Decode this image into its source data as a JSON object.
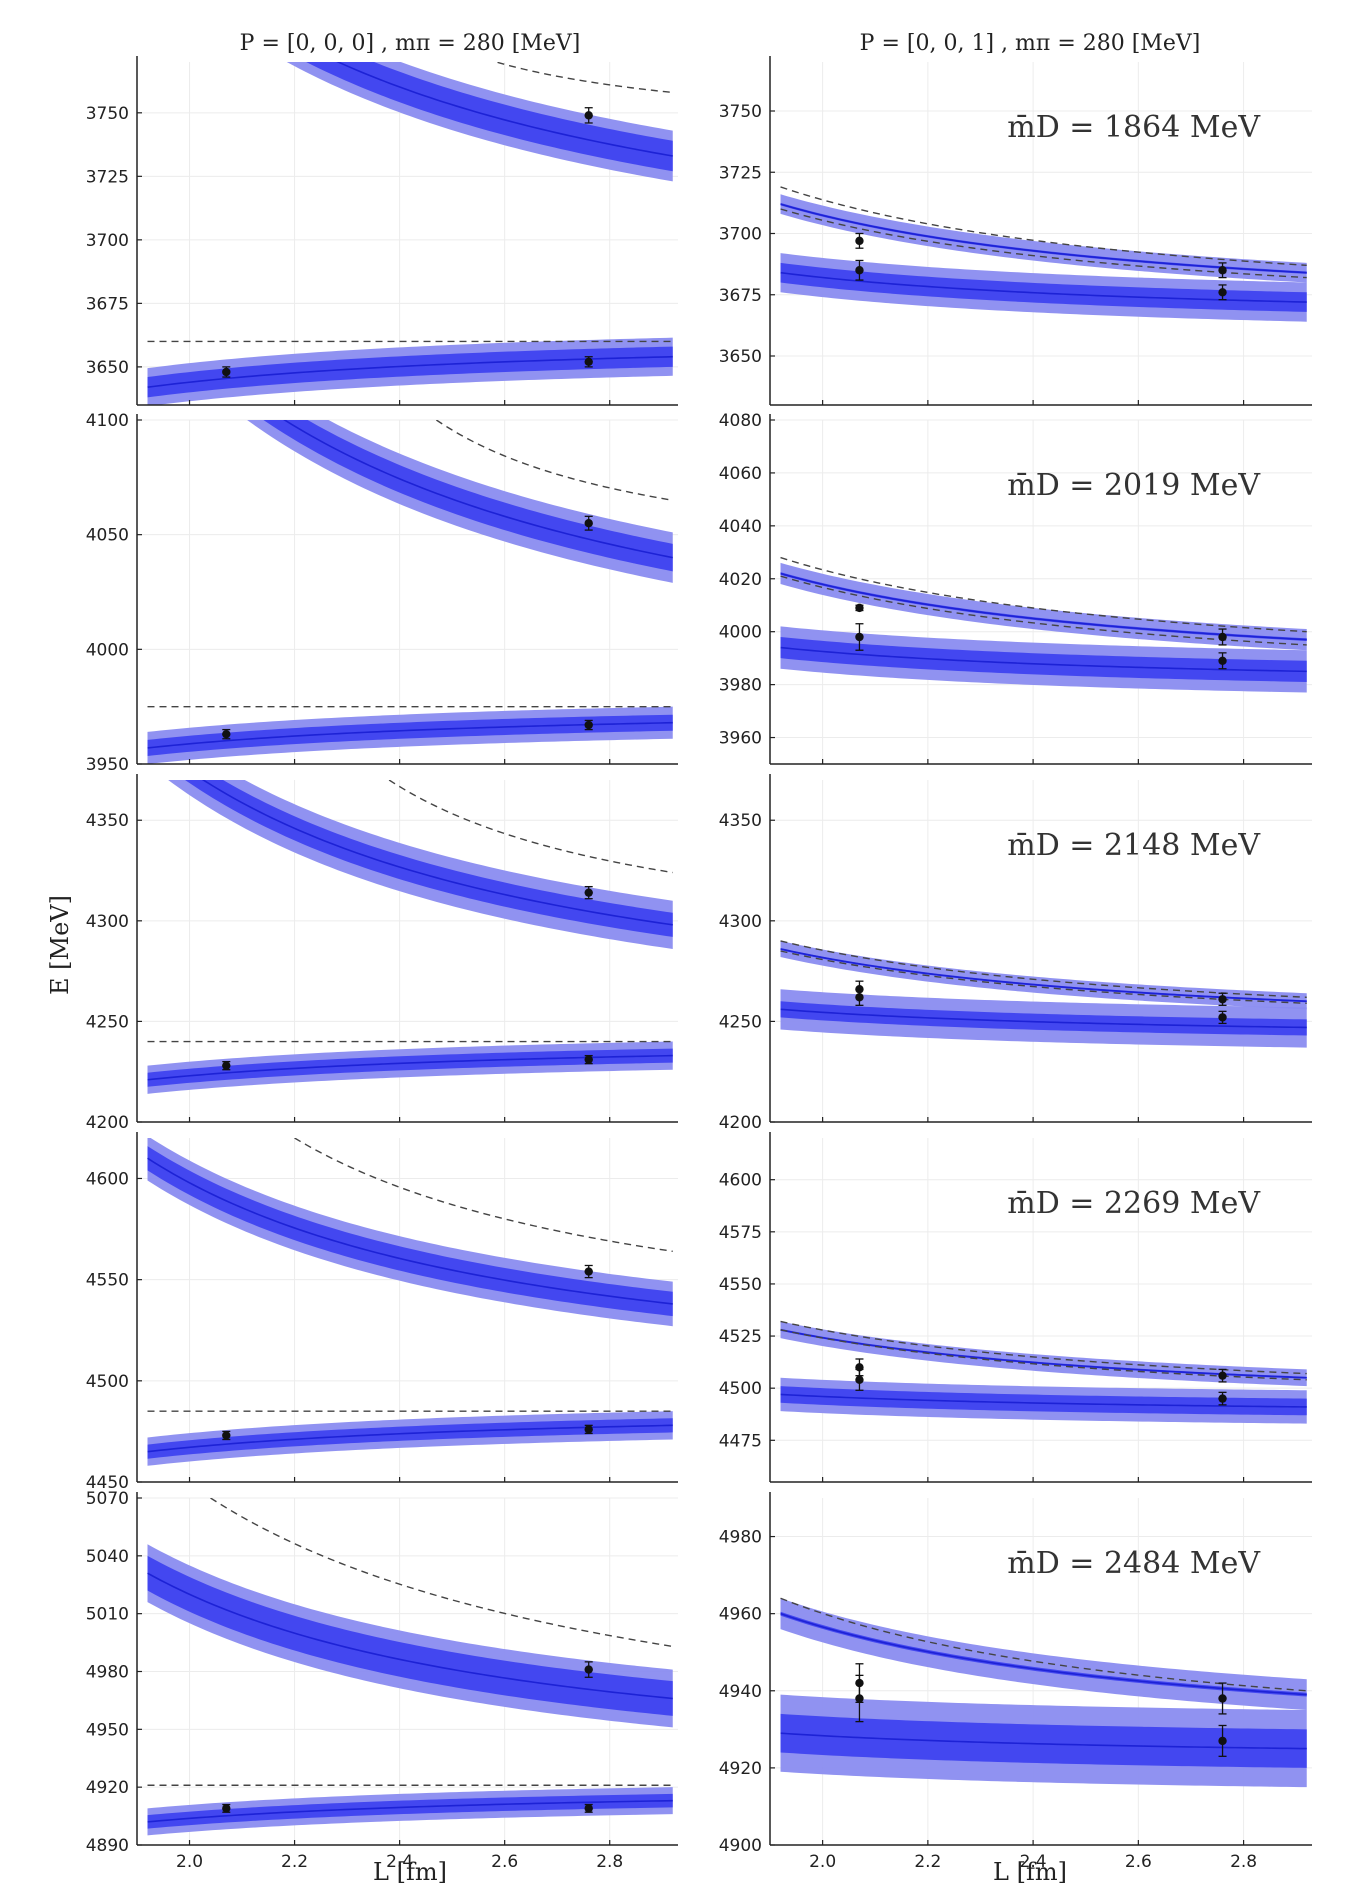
{
  "figure": {
    "col_titles": [
      "P = [0, 0, 0]  , mπ = 280 [MeV]",
      "P = [0, 0, 1]  , mπ = 280 [MeV]"
    ],
    "xlabel": "L [fm]",
    "ylabel": "E [MeV]"
  },
  "colors": {
    "band_outer": "#8a8cf0",
    "band_inner": "#3b3ff0",
    "curve": "#1d22d6",
    "dashed": "#444444",
    "point": "#111111",
    "grid": "#ececec"
  },
  "chart_data": [
    {
      "type": "line",
      "title": "P = [0, 0, 0]  , mπ = 280 [MeV]",
      "xlim": [
        1.9,
        2.93
      ],
      "ylim": [
        3635,
        3770
      ],
      "xticks": [],
      "yticks": [
        3650,
        3675,
        3700,
        3725,
        3750
      ],
      "curves": [
        {
          "x0": 1.92,
          "x1": 2.92,
          "y0": 3642,
          "y1": 3654,
          "k": 1.4,
          "inner": 4,
          "outer": 7.5
        },
        {
          "x0": 1.92,
          "x1": 2.92,
          "y0": 3820,
          "y1": 3733,
          "k": 1.5,
          "inner": 6,
          "outer": 10
        }
      ],
      "dashed": [
        {
          "x0": 1.92,
          "x1": 2.92,
          "y0": 3660,
          "y1": 3660,
          "k": 1.0
        },
        {
          "x0": 2.5,
          "x1": 2.92,
          "y0": 3776,
          "y1": 3758,
          "k": 1.0
        }
      ],
      "points": [
        {
          "x": 2.07,
          "y": 3648,
          "err": 2
        },
        {
          "x": 2.76,
          "y": 3652,
          "err": 2
        },
        {
          "x": 2.76,
          "y": 3749,
          "err": 3
        }
      ]
    },
    {
      "type": "line",
      "title": "P = [0, 0, 1]  , mπ = 280 [MeV]",
      "annotation": "m̄D = 1864 MeV",
      "xlim": [
        1.9,
        2.93
      ],
      "ylim": [
        3630,
        3770
      ],
      "xticks": [],
      "yticks": [
        3650,
        3675,
        3700,
        3725,
        3750
      ],
      "curves": [
        {
          "x0": 1.92,
          "x1": 2.92,
          "y0": 3684,
          "y1": 3672,
          "k": 1.4,
          "inner": 4,
          "outer": 8
        },
        {
          "x0": 1.92,
          "x1": 2.92,
          "y0": 3712,
          "y1": 3684,
          "k": 1.4,
          "inner": 0.5,
          "outer": 4
        }
      ],
      "dashed": [
        {
          "x0": 1.92,
          "x1": 2.92,
          "y0": 3719,
          "y1": 3687,
          "k": 1.4
        },
        {
          "x0": 1.92,
          "x1": 2.92,
          "y0": 3710,
          "y1": 3682,
          "k": 1.4
        }
      ],
      "points": [
        {
          "x": 2.07,
          "y": 3697,
          "err": 3
        },
        {
          "x": 2.07,
          "y": 3685,
          "err": 4
        },
        {
          "x": 2.76,
          "y": 3685,
          "err": 3
        },
        {
          "x": 2.76,
          "y": 3676,
          "err": 3
        }
      ]
    },
    {
      "type": "line",
      "xlim": [
        1.9,
        2.93
      ],
      "ylim": [
        3950,
        4100
      ],
      "xticks": [],
      "yticks": [
        3950,
        4000,
        4050,
        4100
      ],
      "curves": [
        {
          "x0": 1.92,
          "x1": 2.92,
          "y0": 3957,
          "y1": 3968,
          "k": 1.4,
          "inner": 3.5,
          "outer": 7
        },
        {
          "x0": 1.92,
          "x1": 2.92,
          "y0": 4150,
          "y1": 4040,
          "k": 1.5,
          "inner": 6,
          "outer": 11
        }
      ],
      "dashed": [
        {
          "x0": 1.92,
          "x1": 2.92,
          "y0": 3975,
          "y1": 3975,
          "k": 1.0
        },
        {
          "x0": 2.47,
          "x1": 2.92,
          "y0": 4100,
          "y1": 4065,
          "k": 1.0
        }
      ],
      "points": [
        {
          "x": 2.07,
          "y": 3963,
          "err": 2
        },
        {
          "x": 2.76,
          "y": 3967,
          "err": 2
        },
        {
          "x": 2.76,
          "y": 4055,
          "err": 3
        }
      ]
    },
    {
      "type": "line",
      "annotation": "m̄D = 2019 MeV",
      "xlim": [
        1.9,
        2.93
      ],
      "ylim": [
        3950,
        4080
      ],
      "xticks": [],
      "yticks": [
        3960,
        3980,
        4000,
        4020,
        4040,
        4060,
        4080
      ],
      "curves": [
        {
          "x0": 1.92,
          "x1": 2.92,
          "y0": 3994,
          "y1": 3985,
          "k": 1.4,
          "inner": 4,
          "outer": 8
        },
        {
          "x0": 1.92,
          "x1": 2.92,
          "y0": 4022,
          "y1": 3997,
          "k": 1.4,
          "inner": 0.5,
          "outer": 4
        }
      ],
      "dashed": [
        {
          "x0": 1.92,
          "x1": 2.92,
          "y0": 4028,
          "y1": 4000,
          "k": 1.4
        },
        {
          "x0": 1.92,
          "x1": 2.92,
          "y0": 4021,
          "y1": 3995,
          "k": 1.4
        }
      ],
      "points": [
        {
          "x": 2.07,
          "y": 4009,
          "err": 1
        },
        {
          "x": 2.07,
          "y": 3998,
          "err": 5
        },
        {
          "x": 2.76,
          "y": 3998,
          "err": 3
        },
        {
          "x": 2.76,
          "y": 3989,
          "err": 3
        }
      ]
    },
    {
      "type": "line",
      "xlim": [
        1.9,
        2.93
      ],
      "ylim": [
        4200,
        4370
      ],
      "xticks": [],
      "yticks": [
        4200,
        4250,
        4300,
        4350
      ],
      "curves": [
        {
          "x0": 1.92,
          "x1": 2.92,
          "y0": 4221,
          "y1": 4233,
          "k": 1.4,
          "inner": 3.5,
          "outer": 7
        },
        {
          "x0": 1.92,
          "x1": 2.92,
          "y0": 4390,
          "y1": 4298,
          "k": 1.5,
          "inner": 6,
          "outer": 12
        }
      ],
      "dashed": [
        {
          "x0": 1.92,
          "x1": 2.92,
          "y0": 4240,
          "y1": 4240,
          "k": 1.0
        },
        {
          "x0": 2.38,
          "x1": 2.92,
          "y0": 4370,
          "y1": 4324,
          "k": 1.0
        }
      ],
      "points": [
        {
          "x": 2.07,
          "y": 4228,
          "err": 2
        },
        {
          "x": 2.76,
          "y": 4231,
          "err": 2
        },
        {
          "x": 2.76,
          "y": 4314,
          "err": 3
        }
      ]
    },
    {
      "type": "line",
      "annotation": "m̄D = 2148 MeV",
      "xlim": [
        1.9,
        2.93
      ],
      "ylim": [
        4200,
        4370
      ],
      "xticks": [],
      "yticks": [
        4200,
        4250,
        4300,
        4350
      ],
      "curves": [
        {
          "x0": 1.92,
          "x1": 2.92,
          "y0": 4256,
          "y1": 4247,
          "k": 1.4,
          "inner": 4,
          "outer": 10
        },
        {
          "x0": 1.92,
          "x1": 2.92,
          "y0": 4286,
          "y1": 4260,
          "k": 1.4,
          "inner": 0.5,
          "outer": 4
        }
      ],
      "dashed": [
        {
          "x0": 1.92,
          "x1": 2.92,
          "y0": 4290,
          "y1": 4262,
          "k": 1.4
        },
        {
          "x0": 1.92,
          "x1": 2.92,
          "y0": 4285,
          "y1": 4259,
          "k": 1.4
        }
      ],
      "points": [
        {
          "x": 2.07,
          "y": 4266,
          "err": 4
        },
        {
          "x": 2.07,
          "y": 4262,
          "err": 4
        },
        {
          "x": 2.76,
          "y": 4261,
          "err": 3
        },
        {
          "x": 2.76,
          "y": 4252,
          "err": 3
        }
      ]
    },
    {
      "type": "line",
      "xlim": [
        1.9,
        2.93
      ],
      "ylim": [
        4450,
        4620
      ],
      "xticks": [],
      "yticks": [
        4450,
        4500,
        4550,
        4600
      ],
      "curves": [
        {
          "x0": 1.92,
          "x1": 2.92,
          "y0": 4465,
          "y1": 4478,
          "k": 1.4,
          "inner": 3.5,
          "outer": 7
        },
        {
          "x0": 1.92,
          "x1": 2.92,
          "y0": 4610,
          "y1": 4538,
          "k": 1.5,
          "inner": 6,
          "outer": 11
        }
      ],
      "dashed": [
        {
          "x0": 1.92,
          "x1": 2.92,
          "y0": 4485,
          "y1": 4485,
          "k": 1.0
        },
        {
          "x0": 2.2,
          "x1": 2.92,
          "y0": 4620,
          "y1": 4564,
          "k": 1.0
        }
      ],
      "points": [
        {
          "x": 2.07,
          "y": 4473,
          "err": 2
        },
        {
          "x": 2.76,
          "y": 4476,
          "err": 2
        },
        {
          "x": 2.76,
          "y": 4554,
          "err": 3
        }
      ]
    },
    {
      "type": "line",
      "annotation": "m̄D = 2269 MeV",
      "xlim": [
        1.9,
        2.93
      ],
      "ylim": [
        4455,
        4620
      ],
      "xticks": [],
      "yticks": [
        4475,
        4500,
        4525,
        4550,
        4575,
        4600
      ],
      "curves": [
        {
          "x0": 1.92,
          "x1": 2.92,
          "y0": 4497,
          "y1": 4491,
          "k": 1.4,
          "inner": 4,
          "outer": 8
        },
        {
          "x0": 1.92,
          "x1": 2.92,
          "y0": 4528,
          "y1": 4505,
          "k": 1.4,
          "inner": 0.5,
          "outer": 4
        }
      ],
      "dashed": [
        {
          "x0": 1.92,
          "x1": 2.92,
          "y0": 4532,
          "y1": 4507,
          "k": 1.4
        },
        {
          "x0": 1.92,
          "x1": 2.92,
          "y0": 4528,
          "y1": 4504,
          "k": 1.4
        }
      ],
      "points": [
        {
          "x": 2.07,
          "y": 4510,
          "err": 4
        },
        {
          "x": 2.07,
          "y": 4504,
          "err": 5
        },
        {
          "x": 2.76,
          "y": 4506,
          "err": 3
        },
        {
          "x": 2.76,
          "y": 4495,
          "err": 3
        }
      ]
    },
    {
      "type": "line",
      "xlim": [
        1.9,
        2.93
      ],
      "ylim": [
        4890,
        5070
      ],
      "xticks": [
        2.0,
        2.2,
        2.4,
        2.6,
        2.8
      ],
      "yticks": [
        4890,
        4920,
        4950,
        4980,
        5010,
        5040,
        5070
      ],
      "curves": [
        {
          "x0": 1.92,
          "x1": 2.92,
          "y0": 4902,
          "y1": 4913,
          "k": 1.4,
          "inner": 3.5,
          "outer": 7
        },
        {
          "x0": 1.92,
          "x1": 2.92,
          "y0": 5031,
          "y1": 4966,
          "k": 1.5,
          "inner": 9,
          "outer": 15
        }
      ],
      "dashed": [
        {
          "x0": 1.92,
          "x1": 2.92,
          "y0": 4921,
          "y1": 4921,
          "k": 1.0
        },
        {
          "x0": 2.04,
          "x1": 2.92,
          "y0": 5070,
          "y1": 4993,
          "k": 1.0
        }
      ],
      "points": [
        {
          "x": 2.07,
          "y": 4909,
          "err": 2
        },
        {
          "x": 2.76,
          "y": 4909,
          "err": 2
        },
        {
          "x": 2.76,
          "y": 4981,
          "err": 4
        }
      ]
    },
    {
      "type": "line",
      "annotation": "m̄D = 2484 MeV",
      "xlim": [
        1.9,
        2.93
      ],
      "ylim": [
        4900,
        4990
      ],
      "xticks": [
        2.0,
        2.2,
        2.4,
        2.6,
        2.8
      ],
      "yticks": [
        4900,
        4920,
        4940,
        4960,
        4980
      ],
      "curves": [
        {
          "x0": 1.92,
          "x1": 2.92,
          "y0": 4929,
          "y1": 4925,
          "k": 1.4,
          "inner": 5,
          "outer": 10
        },
        {
          "x0": 1.92,
          "x1": 2.92,
          "y0": 4960,
          "y1": 4939,
          "k": 1.4,
          "inner": 0.5,
          "outer": 4
        }
      ],
      "dashed": [
        {
          "x0": 1.92,
          "x1": 2.92,
          "y0": 4964,
          "y1": 4940,
          "k": 1.4
        }
      ],
      "points": [
        {
          "x": 2.07,
          "y": 4942,
          "err": 5
        },
        {
          "x": 2.07,
          "y": 4938,
          "err": 6
        },
        {
          "x": 2.76,
          "y": 4938,
          "err": 4
        },
        {
          "x": 2.76,
          "y": 4927,
          "err": 4
        }
      ]
    }
  ]
}
